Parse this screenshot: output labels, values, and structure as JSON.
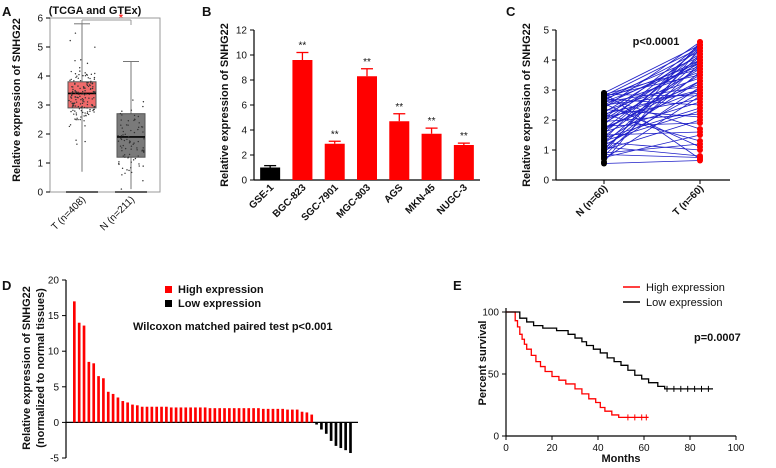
{
  "panel_labels": {
    "a": "A",
    "b": "B",
    "c": "C",
    "d": "D",
    "e": "E"
  },
  "colors": {
    "red": "#ff0000",
    "black": "#000000",
    "blue": "#1f1fc8",
    "box_red": "#f06a6a",
    "box_gray": "#7a7a7a",
    "dots": "#333333"
  },
  "chart_data": [
    {
      "id": "A",
      "type": "box",
      "title": "(TCGA and GTEx)",
      "ylabel": "Relative expression of SNHG22",
      "ylim": [
        0,
        6
      ],
      "yticks": [
        "0",
        "1",
        "2",
        "3",
        "4",
        "5",
        "6"
      ],
      "significance": "*",
      "groups": [
        {
          "label": "T (n=408)",
          "min": 0.7,
          "q1": 2.9,
          "median": 3.4,
          "q3": 3.8,
          "max": 5.8,
          "n": 408
        },
        {
          "label": "N (n=211)",
          "min": 0.1,
          "q1": 1.2,
          "median": 1.9,
          "q3": 2.7,
          "max": 4.5,
          "n": 211
        }
      ]
    },
    {
      "id": "B",
      "type": "bar",
      "ylabel": "Relative expression of SNHG22",
      "ylim": [
        0,
        12
      ],
      "yticks": [
        "0",
        "2",
        "4",
        "6",
        "8",
        "10",
        "12"
      ],
      "categories": [
        "GSE-1",
        "BGC-823",
        "SGC-7901",
        "MGC-803",
        "AGS",
        "MKN-45",
        "NUGC-3"
      ],
      "values": [
        1.0,
        9.6,
        2.9,
        8.3,
        4.7,
        3.7,
        2.8
      ],
      "errors": [
        0.15,
        0.6,
        0.2,
        0.6,
        0.6,
        0.45,
        0.15
      ],
      "labels": [
        "",
        "**",
        "**",
        "**",
        "**",
        "**",
        "**"
      ]
    },
    {
      "id": "C",
      "type": "paired-dot",
      "title": "p<0.0001",
      "ylabel": "Relative expression of SNHG22",
      "ylim": [
        0,
        5
      ],
      "yticks": [
        "0",
        "1",
        "2",
        "3",
        "4",
        "5"
      ],
      "x": [
        "N (n=60)",
        "T (n=60)"
      ],
      "pairs": [
        [
          0.55,
          0.65
        ],
        [
          0.6,
          4.4
        ],
        [
          0.7,
          2.8
        ],
        [
          0.75,
          1.5
        ],
        [
          0.8,
          3.9
        ],
        [
          0.85,
          0.75
        ],
        [
          0.9,
          4.6
        ],
        [
          0.95,
          3.1
        ],
        [
          1.0,
          2.0
        ],
        [
          1.0,
          4.2
        ],
        [
          1.05,
          3.6
        ],
        [
          1.1,
          0.8
        ],
        [
          1.15,
          2.9
        ],
        [
          1.2,
          4.0
        ],
        [
          1.25,
          1.0
        ],
        [
          1.3,
          3.3
        ],
        [
          1.35,
          4.5
        ],
        [
          1.4,
          2.4
        ],
        [
          1.45,
          3.8
        ],
        [
          1.5,
          1.6
        ],
        [
          1.55,
          4.3
        ],
        [
          1.6,
          2.6
        ],
        [
          1.65,
          3.5
        ],
        [
          1.7,
          4.1
        ],
        [
          1.75,
          3.0
        ],
        [
          1.8,
          1.9
        ],
        [
          1.85,
          4.4
        ],
        [
          1.9,
          3.7
        ],
        [
          1.95,
          2.2
        ],
        [
          2.0,
          4.0
        ],
        [
          2.0,
          3.2
        ],
        [
          2.05,
          4.5
        ],
        [
          2.1,
          2.7
        ],
        [
          2.15,
          3.9
        ],
        [
          2.2,
          1.3
        ],
        [
          2.25,
          4.2
        ],
        [
          2.3,
          3.4
        ],
        [
          2.35,
          2.1
        ],
        [
          2.4,
          4.6
        ],
        [
          2.45,
          3.6
        ],
        [
          2.5,
          2.9
        ],
        [
          2.5,
          4.0
        ],
        [
          2.55,
          1.1
        ],
        [
          2.6,
          3.8
        ],
        [
          2.6,
          3.1
        ],
        [
          2.65,
          4.3
        ],
        [
          2.7,
          2.5
        ],
        [
          2.7,
          3.9
        ],
        [
          2.75,
          4.1
        ],
        [
          2.75,
          1.7
        ],
        [
          2.8,
          3.5
        ],
        [
          2.8,
          4.4
        ],
        [
          2.85,
          2.8
        ],
        [
          2.85,
          3.7
        ],
        [
          2.9,
          4.5
        ],
        [
          2.9,
          0.7
        ],
        [
          1.3,
          2.3
        ],
        [
          1.7,
          3.3
        ],
        [
          2.2,
          3.0
        ],
        [
          0.9,
          1.2
        ]
      ]
    },
    {
      "id": "D",
      "type": "waterfall-bar",
      "title": "Wilcoxon matched paired test p<0.001",
      "ylabel": "Relative expression of SNHG22",
      "ylabel2": "(normalized to normal tissues)",
      "ylim": [
        -5,
        20
      ],
      "yticks": [
        "-5",
        "0",
        "5",
        "10",
        "15",
        "20"
      ],
      "legend": [
        "High expression",
        "Low expression"
      ],
      "high_values": [
        17.0,
        14.0,
        13.6,
        8.5,
        8.3,
        6.5,
        6.2,
        4.3,
        4.0,
        3.5,
        3.0,
        2.8,
        2.5,
        2.4,
        2.2,
        2.2,
        2.2,
        2.2,
        2.2,
        2.2,
        2.1,
        2.1,
        2.1,
        2.1,
        2.1,
        2.1,
        2.1,
        2.1,
        2.0,
        2.0,
        2.0,
        2.0,
        2.0,
        2.0,
        2.0,
        2.0,
        2.0,
        2.0,
        2.0,
        1.9,
        1.9,
        1.9,
        1.9,
        1.9,
        1.8,
        1.8,
        1.8,
        1.5,
        1.4,
        1.1
      ],
      "low_values": [
        -0.3,
        -1.0,
        -1.6,
        -2.6,
        -3.3,
        -3.6,
        -3.9,
        -4.3
      ]
    },
    {
      "id": "E",
      "type": "survival",
      "title": "p=0.0007",
      "ylabel": "Percent survival",
      "xlabel": "Months",
      "xlim": [
        0,
        100
      ],
      "ylim": [
        0,
        100
      ],
      "xticks": [
        "0",
        "20",
        "40",
        "60",
        "80",
        "100"
      ],
      "yticks": [
        "0",
        "50",
        "100"
      ],
      "series": [
        {
          "name": "High expression",
          "points": [
            [
              0,
              100
            ],
            [
              3,
              100
            ],
            [
              4,
              93
            ],
            [
              5,
              88
            ],
            [
              6,
              82
            ],
            [
              7,
              78
            ],
            [
              8,
              74
            ],
            [
              9,
              70
            ],
            [
              11,
              65
            ],
            [
              13,
              60
            ],
            [
              15,
              56
            ],
            [
              17,
              52
            ],
            [
              20,
              48
            ],
            [
              23,
              45
            ],
            [
              26,
              42
            ],
            [
              30,
              38
            ],
            [
              33,
              34
            ],
            [
              36,
              30
            ],
            [
              39,
              27
            ],
            [
              41,
              23
            ],
            [
              43,
              20
            ],
            [
              46,
              17
            ],
            [
              49,
              15
            ],
            [
              62,
              15
            ]
          ],
          "censor": [
            53,
            56,
            59,
            61
          ]
        },
        {
          "name": "Low expression",
          "points": [
            [
              0,
              100
            ],
            [
              4,
              100
            ],
            [
              6,
              95
            ],
            [
              9,
              92
            ],
            [
              12,
              89
            ],
            [
              16,
              87
            ],
            [
              22,
              85
            ],
            [
              27,
              82
            ],
            [
              30,
              79
            ],
            [
              33,
              76
            ],
            [
              35,
              73
            ],
            [
              38,
              70
            ],
            [
              41,
              67
            ],
            [
              44,
              63
            ],
            [
              47,
              60
            ],
            [
              50,
              57
            ],
            [
              53,
              53
            ],
            [
              56,
              49
            ],
            [
              59,
              46
            ],
            [
              62,
              43
            ],
            [
              66,
              40
            ],
            [
              69,
              38
            ],
            [
              90,
              38
            ]
          ],
          "censor": [
            70,
            73,
            76,
            79,
            82,
            85,
            88
          ]
        }
      ]
    }
  ]
}
